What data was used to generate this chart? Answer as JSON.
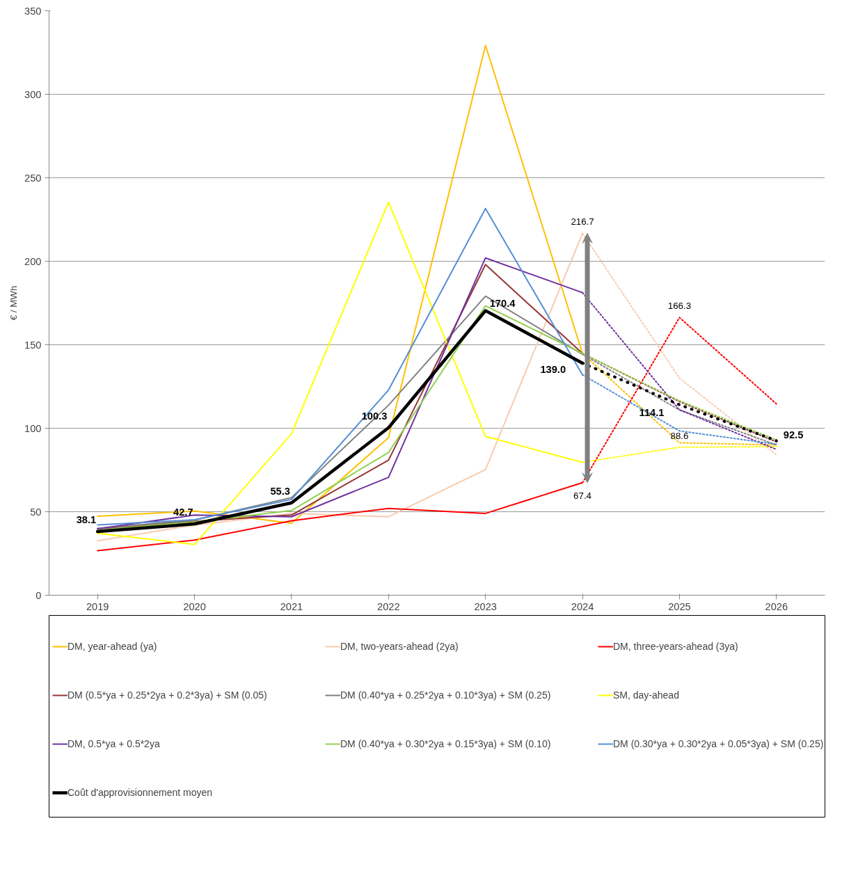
{
  "chart_data": {
    "type": "line",
    "ylabel": "€ / MWh",
    "categories": [
      "2019",
      "2020",
      "2021",
      "2022",
      "2023",
      "2024",
      "2025",
      "2026"
    ],
    "ylim": [
      0,
      350
    ],
    "yticks": [
      0,
      50,
      100,
      150,
      200,
      250,
      300,
      350
    ],
    "grid": "y",
    "legend": "bottom",
    "series": [
      {
        "name": "DM, year-ahead (ya)",
        "color": "#ffc000",
        "values": [
          47.3,
          50.4,
          43.1,
          94.4,
          329.3,
          144.8,
          null,
          null
        ]
      },
      {
        "name": "DM, two-years-ahead (2ya)",
        "color": "#f8cbad",
        "values": [
          32.6,
          42.0,
          49.0,
          47.0,
          75.3,
          216.7,
          null,
          null
        ],
        "value_labels": [
          null,
          null,
          null,
          null,
          null,
          "216.7",
          null,
          null
        ]
      },
      {
        "name": "DM, three-years-ahead (3ya)",
        "color": "#ff0000",
        "values": [
          26.7,
          33.0,
          44.6,
          52.0,
          49.0,
          67.4,
          null,
          null
        ],
        "value_labels": [
          null,
          null,
          null,
          null,
          null,
          "67.4",
          null,
          null
        ]
      },
      {
        "name": "DM (0.5*ya + 0.25*2ya + 0.2*3ya) + SM (0.05)",
        "color": "#943634",
        "values": [
          39.6,
          44.3,
          48.0,
          80.9,
          198.0,
          144.8,
          null,
          null
        ]
      },
      {
        "name": "DM (0.40*ya + 0.25*2ya + 0.10*3ya) + SM (0.25)",
        "color": "#808080",
        "values": [
          40.0,
          45.0,
          58.5,
          113.8,
          179.1,
          144.3,
          null,
          null
        ]
      },
      {
        "name": "SM, day-ahead",
        "color": "#ffff00",
        "values": [
          37.1,
          30.4,
          96.7,
          235.4,
          95.1,
          79.6,
          null,
          null
        ]
      },
      {
        "name": "DM, 0.5*ya + 0.5*2ya",
        "color": "#7030a0",
        "values": [
          39.8,
          48.0,
          47.0,
          70.6,
          202.0,
          181.2,
          null,
          null
        ]
      },
      {
        "name": "DM (0.40*ya + 0.30*2ya + 0.15*3ya) + SM (0.10)",
        "color": "#92d050",
        "values": [
          39.0,
          43.9,
          50.7,
          85.5,
          173.3,
          144.8,
          null,
          null
        ]
      },
      {
        "name": "DM (0.30*ya + 0.30*2ya + 0.05*3ya) + SM (0.25)",
        "color": "#558ed5",
        "values": [
          42.1,
          45.2,
          57.4,
          122.9,
          231.6,
          132.0,
          null,
          null
        ]
      },
      {
        "name": "Coût d'approvisionnement moyen",
        "color": "#000000",
        "values": [
          38.1,
          42.7,
          55.3,
          100.3,
          170.4,
          139.0,
          null,
          null
        ],
        "value_labels": [
          "38.1",
          "42.7",
          "55.3",
          "100.3",
          "170.4",
          "139.0",
          null,
          null
        ]
      },
      {
        "color": "#ffc000",
        "line_style": "dotted",
        "values": [
          null,
          null,
          null,
          null,
          null,
          144.8,
          91.3,
          90.0
        ]
      },
      {
        "color": "#f8cbad",
        "line_style": "dotted",
        "values": [
          null,
          null,
          null,
          null,
          null,
          216.7,
          130.0,
          84.1
        ]
      },
      {
        "color": "#ff0000",
        "line_style": "dotted",
        "values": [
          null,
          null,
          null,
          null,
          null,
          67.4,
          166.3,
          114.6
        ],
        "value_labels": [
          null,
          null,
          null,
          null,
          null,
          null,
          "166.3",
          null
        ]
      },
      {
        "color": "#943634",
        "line_style": "dotted",
        "values": [
          null,
          null,
          null,
          null,
          null,
          144.8,
          116.0,
          91.8
        ]
      },
      {
        "color": "#808080",
        "line_style": "dotted",
        "values": [
          null,
          null,
          null,
          null,
          null,
          144.3,
          111.0,
          90.0
        ]
      },
      {
        "color": "#ffff00",
        "line_style": "dotted",
        "values": [
          null,
          null,
          null,
          null,
          null,
          79.6,
          88.6,
          89.0
        ],
        "value_labels": [
          null,
          null,
          null,
          null,
          null,
          null,
          "88.6",
          null
        ]
      },
      {
        "color": "#7030a0",
        "line_style": "dotted",
        "values": [
          null,
          null,
          null,
          null,
          null,
          181.2,
          111.0,
          87.3
        ]
      },
      {
        "color": "#92d050",
        "line_style": "dotted",
        "values": [
          null,
          null,
          null,
          null,
          null,
          144.8,
          116.5,
          93.0
        ]
      },
      {
        "color": "#558ed5",
        "line_style": "dotted",
        "values": [
          null,
          null,
          null,
          null,
          null,
          132.0,
          98.4,
          90.4
        ]
      },
      {
        "color": "#000000",
        "line_style": "dotted",
        "values": [
          null,
          null,
          null,
          null,
          null,
          139.0,
          114.1,
          92.5
        ],
        "value_labels": [
          null,
          null,
          null,
          null,
          null,
          null,
          "114.1",
          "92.5"
        ]
      }
    ]
  }
}
